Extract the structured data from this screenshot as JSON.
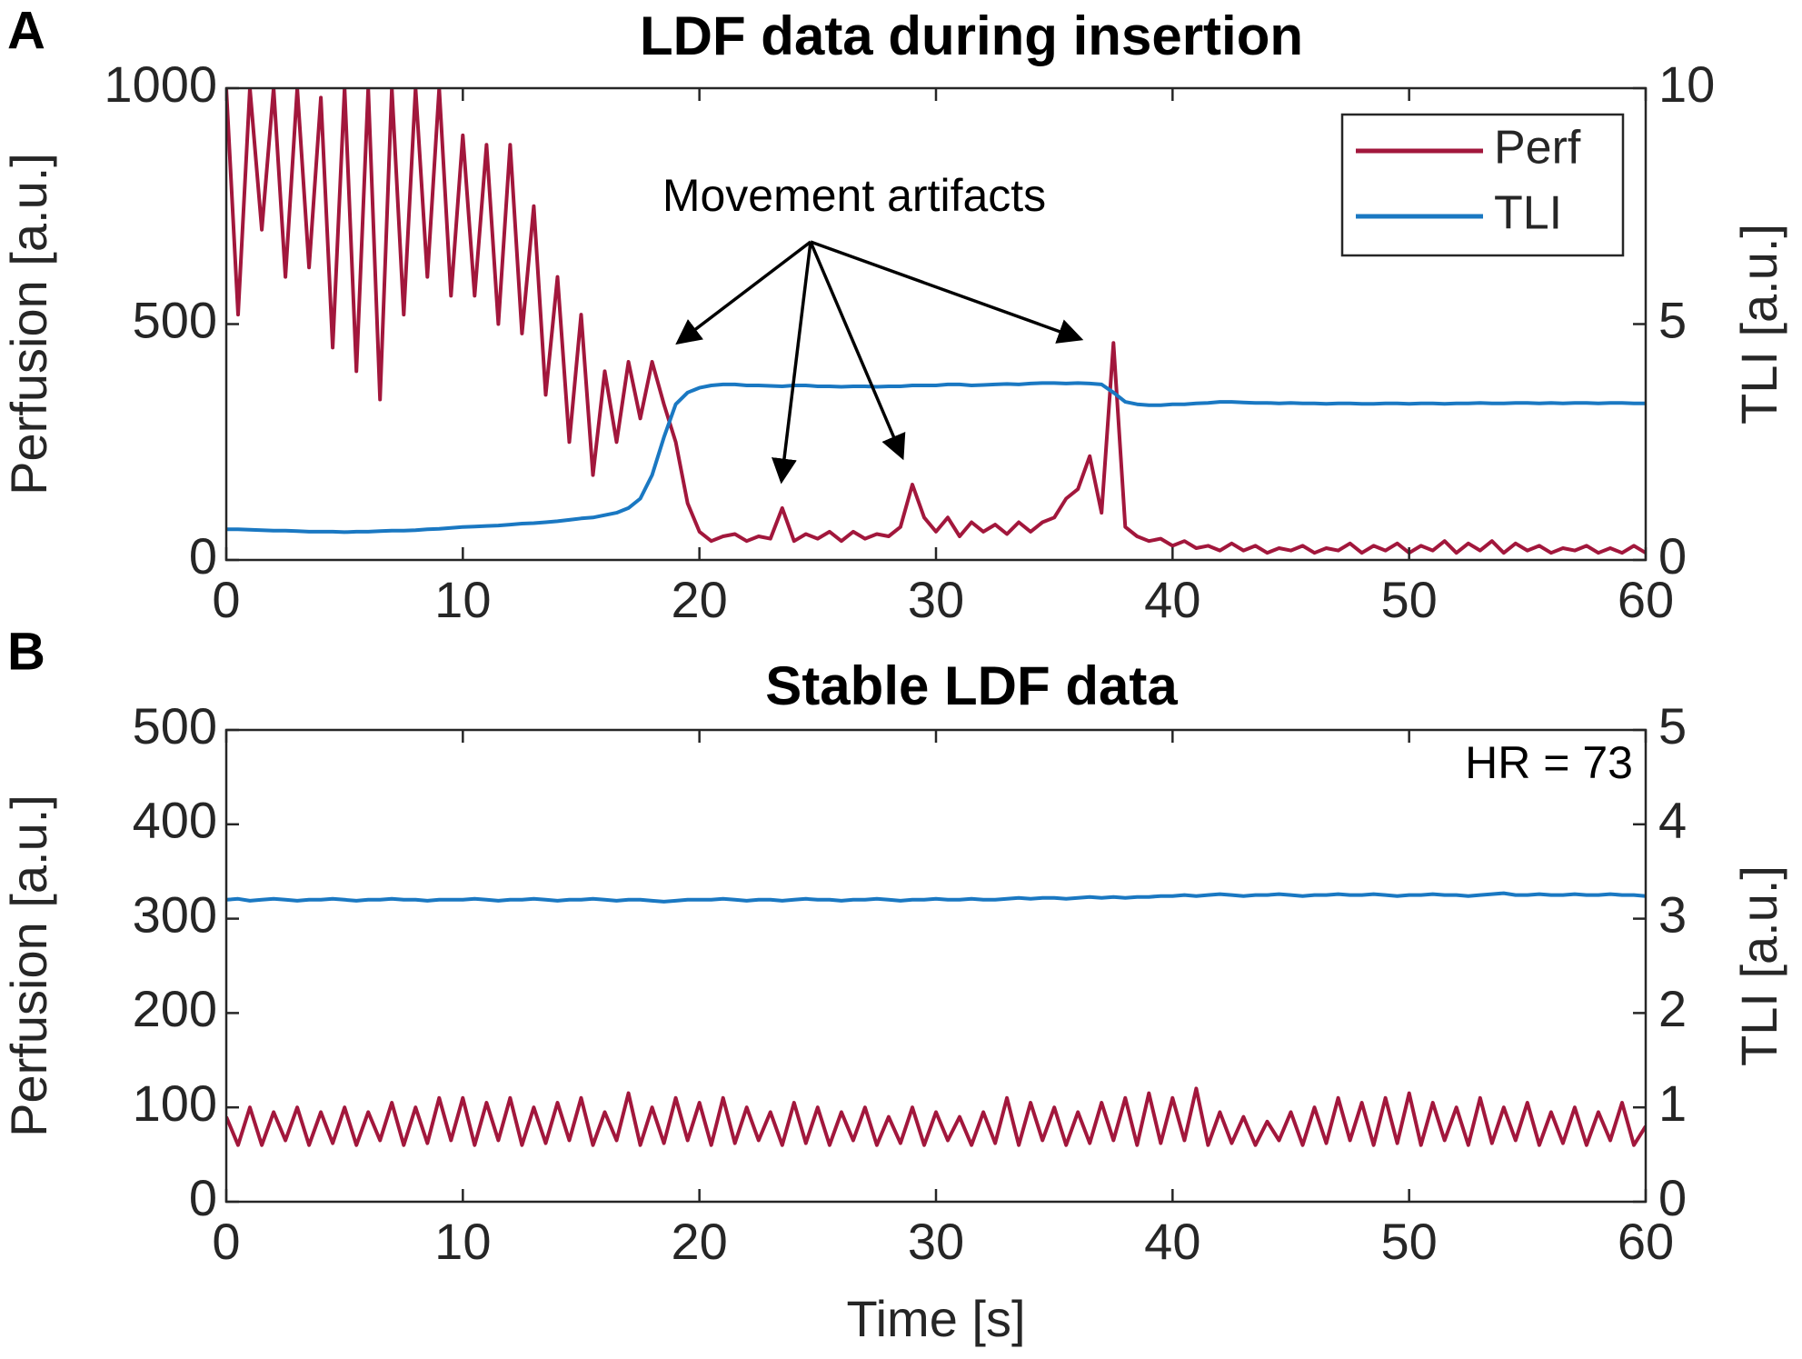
{
  "chart_data": [
    {
      "type": "line",
      "panel": "A",
      "title": "LDF data during insertion",
      "ylabel": "Perfusion [a.u.]",
      "y2label": "TLI [a.u.]",
      "annotation": "Movement artifacts",
      "legend": "upper right",
      "grid": false,
      "xlim": [
        0,
        60
      ],
      "xticks": [
        0,
        10,
        20,
        30,
        40,
        50,
        60
      ],
      "ylim": [
        0,
        1000
      ],
      "yticks": [
        0,
        500,
        1000
      ],
      "y2lim": [
        0,
        10
      ],
      "y2ticks": [
        0,
        5,
        10
      ],
      "x": [
        0,
        0.5,
        1,
        1.5,
        2,
        2.5,
        3,
        3.5,
        4,
        4.5,
        5,
        5.5,
        6,
        6.5,
        7,
        7.5,
        8,
        8.5,
        9,
        9.5,
        10,
        10.5,
        11,
        11.5,
        12,
        12.5,
        13,
        13.5,
        14,
        14.5,
        15,
        15.5,
        16,
        16.5,
        17,
        17.5,
        18,
        18.5,
        19,
        19.5,
        20,
        20.5,
        21,
        21.5,
        22,
        22.5,
        23,
        23.5,
        24,
        24.5,
        25,
        25.5,
        26,
        26.5,
        27,
        27.5,
        28,
        28.5,
        29,
        29.5,
        30,
        30.5,
        31,
        31.5,
        32,
        32.5,
        33,
        33.5,
        34,
        34.5,
        35,
        35.5,
        36,
        36.5,
        37,
        37.5,
        38,
        38.5,
        39,
        39.5,
        40,
        40.5,
        41,
        41.5,
        42,
        42.5,
        43,
        43.5,
        44,
        44.5,
        45,
        45.5,
        46,
        46.5,
        47,
        47.5,
        48,
        48.5,
        49,
        49.5,
        50,
        50.5,
        51,
        51.5,
        52,
        52.5,
        53,
        53.5,
        54,
        54.5,
        55,
        55.5,
        56,
        56.5,
        57,
        57.5,
        58,
        58.5,
        59,
        59.5,
        60
      ],
      "series": [
        {
          "name": "Perf",
          "color": "#a2173c",
          "values": [
            1000,
            520,
            1000,
            700,
            1000,
            600,
            1000,
            620,
            980,
            450,
            1000,
            400,
            1000,
            340,
            1000,
            520,
            1000,
            600,
            1000,
            560,
            900,
            560,
            880,
            500,
            880,
            480,
            750,
            350,
            600,
            250,
            520,
            180,
            400,
            250,
            420,
            300,
            420,
            330,
            250,
            120,
            60,
            40,
            50,
            55,
            40,
            50,
            45,
            110,
            40,
            55,
            45,
            60,
            40,
            60,
            45,
            55,
            50,
            70,
            160,
            90,
            60,
            90,
            50,
            80,
            60,
            75,
            55,
            80,
            60,
            80,
            90,
            130,
            150,
            220,
            100,
            460,
            70,
            50,
            40,
            45,
            30,
            40,
            25,
            30,
            20,
            35,
            20,
            30,
            15,
            25,
            20,
            30,
            15,
            25,
            20,
            35,
            15,
            30,
            20,
            35,
            15,
            30,
            20,
            40,
            15,
            35,
            20,
            40,
            15,
            35,
            20,
            30,
            15,
            25,
            20,
            30,
            15,
            25,
            15,
            30,
            15
          ]
        },
        {
          "name": "TLI",
          "color": "#1a78c2",
          "axis": "y2",
          "values": [
            0.65,
            0.65,
            0.64,
            0.63,
            0.62,
            0.62,
            0.61,
            0.6,
            0.6,
            0.6,
            0.59,
            0.6,
            0.6,
            0.61,
            0.62,
            0.62,
            0.63,
            0.65,
            0.66,
            0.68,
            0.7,
            0.71,
            0.72,
            0.73,
            0.75,
            0.77,
            0.78,
            0.8,
            0.82,
            0.85,
            0.88,
            0.9,
            0.95,
            1.0,
            1.1,
            1.3,
            1.8,
            2.6,
            3.3,
            3.55,
            3.65,
            3.7,
            3.72,
            3.72,
            3.7,
            3.7,
            3.69,
            3.68,
            3.7,
            3.7,
            3.68,
            3.68,
            3.67,
            3.68,
            3.68,
            3.67,
            3.68,
            3.68,
            3.7,
            3.7,
            3.7,
            3.72,
            3.72,
            3.7,
            3.71,
            3.72,
            3.73,
            3.72,
            3.74,
            3.75,
            3.75,
            3.74,
            3.75,
            3.74,
            3.72,
            3.55,
            3.35,
            3.3,
            3.28,
            3.28,
            3.3,
            3.3,
            3.32,
            3.33,
            3.35,
            3.35,
            3.34,
            3.33,
            3.33,
            3.32,
            3.33,
            3.32,
            3.32,
            3.31,
            3.32,
            3.32,
            3.31,
            3.31,
            3.32,
            3.32,
            3.31,
            3.32,
            3.32,
            3.31,
            3.32,
            3.32,
            3.33,
            3.32,
            3.32,
            3.33,
            3.33,
            3.32,
            3.33,
            3.32,
            3.33,
            3.33,
            3.32,
            3.33,
            3.33,
            3.32,
            3.32
          ]
        }
      ]
    },
    {
      "type": "line",
      "panel": "B",
      "title": "Stable LDF data",
      "ylabel": "Perfusion [a.u.]",
      "y2label": "TLI [a.u.]",
      "xlabel": "Time [s]",
      "annotation": "HR = 73",
      "grid": false,
      "xlim": [
        0,
        60
      ],
      "xticks": [
        0,
        10,
        20,
        30,
        40,
        50,
        60
      ],
      "ylim": [
        0,
        500
      ],
      "yticks": [
        0,
        100,
        200,
        300,
        400,
        500
      ],
      "y2lim": [
        0,
        5
      ],
      "y2ticks": [
        0,
        1,
        2,
        3,
        4,
        5
      ],
      "x": [
        0,
        0.5,
        1,
        1.5,
        2,
        2.5,
        3,
        3.5,
        4,
        4.5,
        5,
        5.5,
        6,
        6.5,
        7,
        7.5,
        8,
        8.5,
        9,
        9.5,
        10,
        10.5,
        11,
        11.5,
        12,
        12.5,
        13,
        13.5,
        14,
        14.5,
        15,
        15.5,
        16,
        16.5,
        17,
        17.5,
        18,
        18.5,
        19,
        19.5,
        20,
        20.5,
        21,
        21.5,
        22,
        22.5,
        23,
        23.5,
        24,
        24.5,
        25,
        25.5,
        26,
        26.5,
        27,
        27.5,
        28,
        28.5,
        29,
        29.5,
        30,
        30.5,
        31,
        31.5,
        32,
        32.5,
        33,
        33.5,
        34,
        34.5,
        35,
        35.5,
        36,
        36.5,
        37,
        37.5,
        38,
        38.5,
        39,
        39.5,
        40,
        40.5,
        41,
        41.5,
        42,
        42.5,
        43,
        43.5,
        44,
        44.5,
        45,
        45.5,
        46,
        46.5,
        47,
        47.5,
        48,
        48.5,
        49,
        49.5,
        50,
        50.5,
        51,
        51.5,
        52,
        52.5,
        53,
        53.5,
        54,
        54.5,
        55,
        55.5,
        56,
        56.5,
        57,
        57.5,
        58,
        58.5,
        59,
        59.5,
        60
      ],
      "series": [
        {
          "color": "#a2173c",
          "values": [
            90,
            60,
            100,
            60,
            95,
            65,
            100,
            60,
            95,
            62,
            100,
            60,
            95,
            65,
            105,
            60,
            100,
            62,
            110,
            65,
            110,
            60,
            105,
            65,
            110,
            60,
            100,
            62,
            105,
            65,
            110,
            60,
            95,
            65,
            115,
            60,
            100,
            62,
            110,
            65,
            105,
            60,
            110,
            62,
            100,
            65,
            95,
            60,
            105,
            62,
            100,
            60,
            95,
            65,
            100,
            60,
            90,
            62,
            100,
            60,
            95,
            65,
            90,
            60,
            95,
            62,
            110,
            60,
            105,
            65,
            100,
            60,
            95,
            62,
            105,
            65,
            110,
            60,
            115,
            62,
            110,
            65,
            120,
            60,
            95,
            62,
            90,
            60,
            85,
            65,
            95,
            60,
            100,
            62,
            110,
            65,
            105,
            60,
            110,
            62,
            115,
            60,
            105,
            65,
            100,
            60,
            110,
            62,
            100,
            65,
            105,
            60,
            95,
            62,
            100,
            60,
            95,
            65,
            105,
            60,
            80
          ]
        },
        {
          "color": "#1a78c2",
          "axis": "y2",
          "values": [
            3.2,
            3.21,
            3.19,
            3.2,
            3.21,
            3.2,
            3.19,
            3.2,
            3.2,
            3.21,
            3.2,
            3.19,
            3.2,
            3.2,
            3.21,
            3.2,
            3.2,
            3.19,
            3.2,
            3.2,
            3.2,
            3.21,
            3.2,
            3.19,
            3.2,
            3.2,
            3.21,
            3.2,
            3.19,
            3.2,
            3.2,
            3.21,
            3.2,
            3.19,
            3.2,
            3.2,
            3.19,
            3.18,
            3.19,
            3.2,
            3.2,
            3.2,
            3.21,
            3.2,
            3.19,
            3.2,
            3.2,
            3.19,
            3.2,
            3.21,
            3.2,
            3.2,
            3.19,
            3.2,
            3.2,
            3.21,
            3.2,
            3.19,
            3.2,
            3.2,
            3.21,
            3.2,
            3.2,
            3.21,
            3.2,
            3.2,
            3.21,
            3.22,
            3.21,
            3.22,
            3.22,
            3.21,
            3.22,
            3.23,
            3.22,
            3.23,
            3.22,
            3.23,
            3.23,
            3.24,
            3.24,
            3.25,
            3.24,
            3.25,
            3.26,
            3.25,
            3.24,
            3.25,
            3.25,
            3.26,
            3.25,
            3.24,
            3.25,
            3.25,
            3.26,
            3.25,
            3.25,
            3.26,
            3.25,
            3.24,
            3.25,
            3.25,
            3.26,
            3.25,
            3.25,
            3.24,
            3.25,
            3.26,
            3.27,
            3.25,
            3.25,
            3.26,
            3.25,
            3.25,
            3.26,
            3.25,
            3.25,
            3.26,
            3.25,
            3.25,
            3.24
          ]
        }
      ]
    }
  ]
}
